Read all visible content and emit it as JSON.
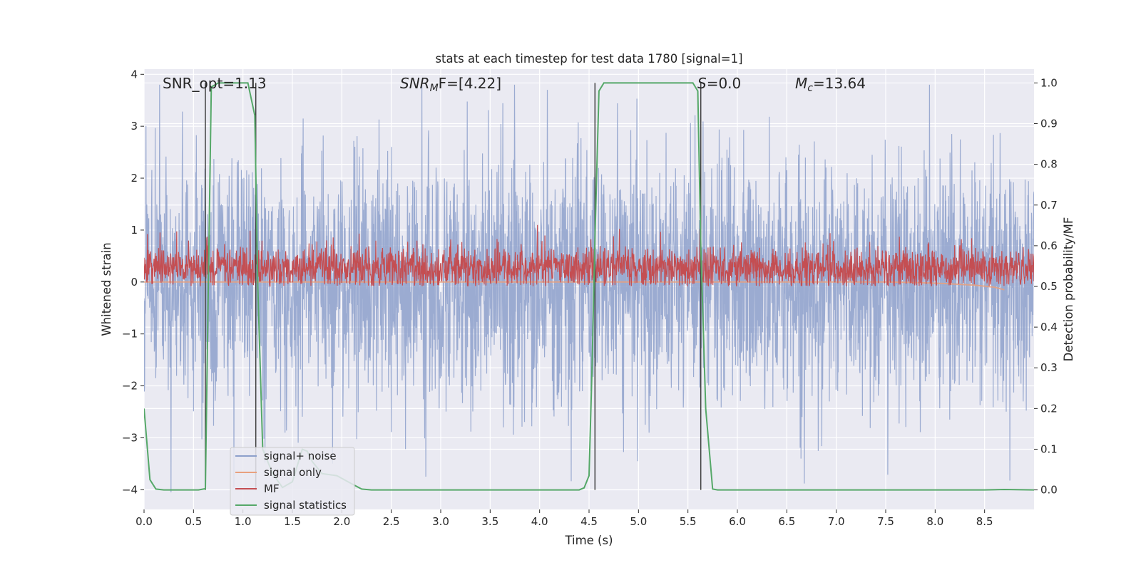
{
  "chart_data": {
    "type": "line",
    "title": "stats at each timestep for test data 1780 [signal=1]",
    "xlabel": "Time (s)",
    "ylabel_left": "Whitened strain",
    "ylabel_right": "Detection probability/MF",
    "xlim": [
      0.0,
      9.0
    ],
    "ylim_left": [
      -4.38,
      4.1
    ],
    "ylim_right": [
      -0.048,
      1.034
    ],
    "x_ticks": [
      "0.0",
      "0.5",
      "1.0",
      "1.5",
      "2.0",
      "2.5",
      "3.0",
      "3.5",
      "4.0",
      "4.5",
      "5.0",
      "5.5",
      "6.0",
      "6.5",
      "7.0",
      "7.5",
      "8.0",
      "8.5"
    ],
    "x_tick_values": [
      0.0,
      0.5,
      1.0,
      1.5,
      2.0,
      2.5,
      3.0,
      3.5,
      4.0,
      4.5,
      5.0,
      5.5,
      6.0,
      6.5,
      7.0,
      7.5,
      8.0,
      8.5
    ],
    "y_left_ticks": [
      "−4",
      "−3",
      "−2",
      "−1",
      "0",
      "1",
      "2",
      "3",
      "4"
    ],
    "y_left_tick_values": [
      -4,
      -3,
      -2,
      -1,
      0,
      1,
      2,
      3,
      4
    ],
    "y_right_ticks": [
      "0.0",
      "0.1",
      "0.2",
      "0.3",
      "0.4",
      "0.5",
      "0.6",
      "0.7",
      "0.8",
      "0.9",
      "1.0"
    ],
    "y_right_tick_values": [
      0.0,
      0.1,
      0.2,
      0.3,
      0.4,
      0.5,
      0.6,
      0.7,
      0.8,
      0.9,
      1.0
    ],
    "annotations": {
      "snr_opt": "SNR_opt=1.13",
      "snr_mf_main": "SNR",
      "snr_mf_sub": "M",
      "snr_mf_rest": "F=[4.22]",
      "s_italic": "S",
      "s_rest": "=0.0",
      "mc_main": "M",
      "mc_sub": "c",
      "mc_rest": "=13.64"
    },
    "vertical_lines_x": [
      0.62,
      1.13,
      4.56,
      5.63
    ],
    "series": [
      {
        "name": "signal+ noise",
        "color": "#8da0cb",
        "noise_sigma": 1.15,
        "axis": "left"
      },
      {
        "name": "signal only",
        "color": "#e8a07e",
        "axis": "left",
        "points": [
          [
            0.0,
            0.0
          ],
          [
            7.5,
            0.0
          ],
          [
            7.8,
            -0.01
          ],
          [
            8.1,
            -0.03
          ],
          [
            8.4,
            -0.06
          ],
          [
            8.6,
            -0.1
          ],
          [
            8.7,
            -0.15
          ]
        ]
      },
      {
        "name": "MF",
        "color": "#c44e52",
        "axis": "right",
        "base": 0.545,
        "amplitude": 0.045
      },
      {
        "name": "signal statistics",
        "color": "#55a868",
        "axis": "right",
        "points": [
          [
            0.0,
            0.2
          ],
          [
            0.06,
            0.025
          ],
          [
            0.12,
            0.002
          ],
          [
            0.2,
            0.0
          ],
          [
            0.55,
            0.0
          ],
          [
            0.62,
            0.003
          ],
          [
            0.65,
            0.5
          ],
          [
            0.68,
            0.99
          ],
          [
            0.75,
            1.0
          ],
          [
            1.05,
            1.0
          ],
          [
            1.12,
            0.92
          ],
          [
            1.15,
            0.5
          ],
          [
            1.2,
            0.1
          ],
          [
            1.3,
            0.04
          ],
          [
            1.4,
            0.006
          ],
          [
            1.5,
            0.02
          ],
          [
            1.6,
            0.1
          ],
          [
            1.65,
            0.095
          ],
          [
            1.7,
            0.07
          ],
          [
            1.8,
            0.04
          ],
          [
            1.95,
            0.035
          ],
          [
            2.1,
            0.015
          ],
          [
            2.2,
            0.002
          ],
          [
            2.3,
            0.0
          ],
          [
            4.4,
            0.0
          ],
          [
            4.45,
            0.005
          ],
          [
            4.5,
            0.035
          ],
          [
            4.53,
            0.3
          ],
          [
            4.56,
            0.62
          ],
          [
            4.6,
            0.98
          ],
          [
            4.65,
            1.0
          ],
          [
            5.55,
            1.0
          ],
          [
            5.6,
            0.98
          ],
          [
            5.63,
            0.6
          ],
          [
            5.68,
            0.2
          ],
          [
            5.75,
            0.002
          ],
          [
            5.8,
            0.0
          ],
          [
            8.5,
            0.0
          ],
          [
            8.7,
            0.001
          ],
          [
            9.0,
            0.0
          ]
        ]
      }
    ],
    "legend": {
      "position": "lower-left"
    }
  },
  "colors": {
    "axes_bg": "#eaeaf2",
    "grid": "#ffffff",
    "noise": "#8da0cb",
    "signal_only": "#e8a07e",
    "mf": "#c44e52",
    "stats": "#55a868",
    "vline": "#404040"
  }
}
